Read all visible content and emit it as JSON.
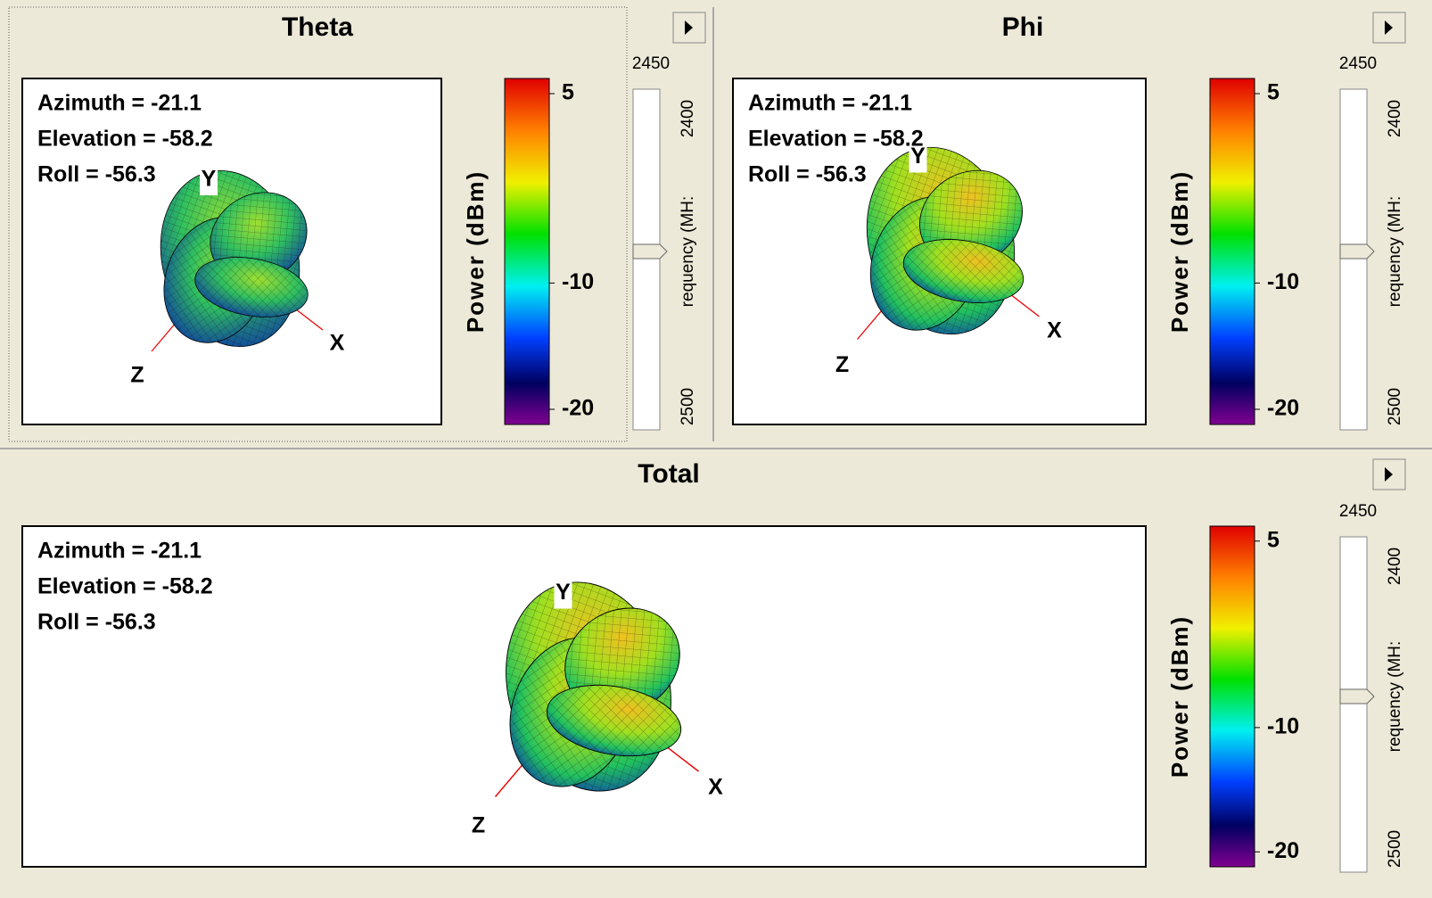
{
  "panels": [
    {
      "title": "Theta",
      "info": [
        "Azimuth = -21.1",
        "Elevation = -58.2",
        "Roll = -56.3"
      ],
      "axes": [
        "X",
        "Y",
        "Z"
      ],
      "colorbar": {
        "label": "Power (dBm)",
        "clim": [
          -21.2,
          6.2
        ],
        "ticks": [
          5,
          -10,
          -20
        ]
      },
      "slider": {
        "value": "2450",
        "min_label": "2400",
        "max_label": "2500",
        "label": "requency (MH:"
      }
    },
    {
      "title": "Phi",
      "info": [
        "Azimuth = -21.1",
        "Elevation = -58.2",
        "Roll = -56.3"
      ],
      "axes": [
        "X",
        "Y",
        "Z"
      ],
      "colorbar": {
        "label": "Power (dBm)",
        "clim": [
          -21.2,
          6.2
        ],
        "ticks": [
          5,
          -10,
          -20
        ]
      },
      "slider": {
        "value": "2450",
        "min_label": "2400",
        "max_label": "2500",
        "label": "requency (MH:"
      }
    },
    {
      "title": "Total",
      "info": [
        "Azimuth = -21.1",
        "Elevation = -58.2",
        "Roll = -56.3"
      ],
      "axes": [
        "X",
        "Y",
        "Z"
      ],
      "colorbar": {
        "label": "Power (dBm)",
        "clim": [
          -21.2,
          6.2
        ],
        "ticks": [
          5,
          -10,
          -20
        ]
      },
      "slider": {
        "value": "2450",
        "min_label": "2400",
        "max_label": "2500",
        "label": "requency (MH:"
      }
    }
  ]
}
